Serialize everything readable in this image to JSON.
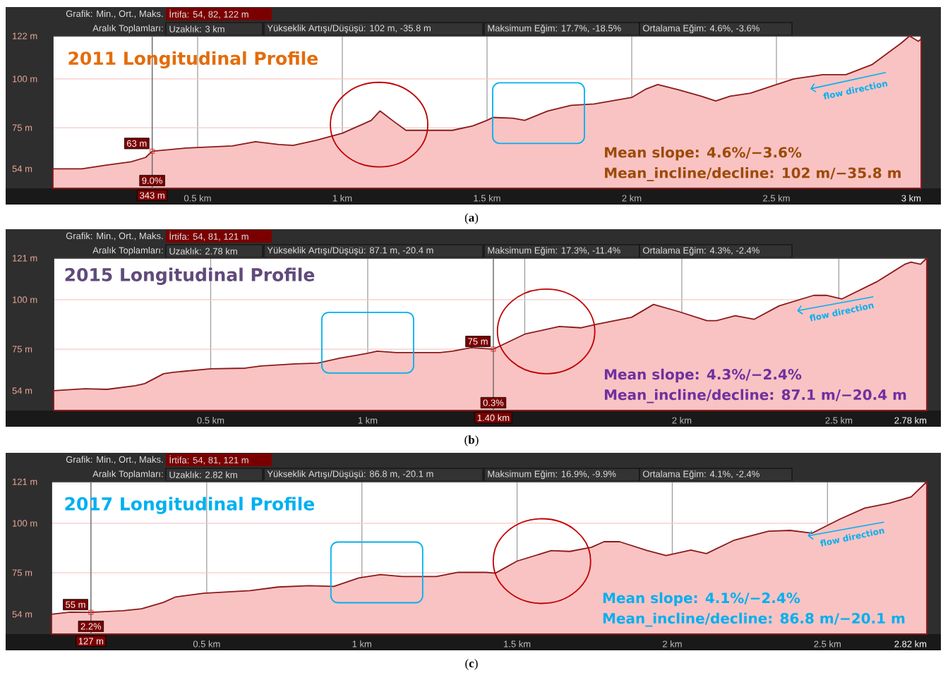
{
  "chart_data": [
    {
      "type": "area",
      "title": "2011 Longitudinal Profile",
      "color": "#f9c3c3",
      "grid": true,
      "xlim": [
        0,
        3
      ],
      "ylim": [
        44,
        122
      ],
      "xticks": [
        {
          "value": 0.5,
          "label": "0.5 km"
        },
        {
          "value": 1,
          "label": "1 km"
        },
        {
          "value": 1.5,
          "label": "1.5 km"
        },
        {
          "value": 2,
          "label": "2 km"
        },
        {
          "value": 2.5,
          "label": "2.5 km"
        },
        {
          "value": 3,
          "label": "3 km"
        }
      ],
      "yticks": [
        {
          "value": 54,
          "label": "54 m"
        },
        {
          "value": 75,
          "label": "75 m"
        },
        {
          "value": 100,
          "label": "100 m"
        },
        {
          "value": 122,
          "label": "122 m"
        }
      ],
      "x": [
        0,
        0.1,
        0.18,
        0.27,
        0.32,
        0.343,
        0.46,
        0.62,
        0.7,
        0.78,
        0.83,
        0.91,
        1.0,
        1.1,
        1.13,
        1.18,
        1.22,
        1.38,
        1.45,
        1.5,
        1.52,
        1.59,
        1.63,
        1.71,
        1.79,
        1.87,
        2.0,
        2.05,
        2.09,
        2.16,
        2.24,
        2.29,
        2.34,
        2.41,
        2.5,
        2.56,
        2.66,
        2.74,
        2.83,
        2.93,
        2.96,
        2.99,
        3.0
      ],
      "values": [
        54,
        54,
        55.8,
        57.6,
        59.8,
        63,
        64.6,
        65.7,
        67.9,
        66.4,
        66,
        68.6,
        72.2,
        78.8,
        83.6,
        78,
        73.7,
        73.7,
        75.9,
        78.8,
        80.3,
        79.9,
        78.8,
        83.6,
        86.5,
        87.2,
        90.5,
        94.9,
        97.1,
        94.5,
        91.2,
        88.7,
        91.2,
        92.7,
        97.1,
        100,
        102.2,
        102.2,
        107.3,
        118.2,
        122,
        119.3,
        120.4
      ],
      "ref_lines": [
        {
          "axis": "x",
          "value": 0.343,
          "label": "343 m"
        }
      ],
      "annotations": [
        "Grafik: Min., Ort., Maks.",
        "İrtifa: 54, 82, 122 m",
        "Aralık Toplamları:",
        "Uzaklık: 3 km",
        "Yükseklik Artışı/Düşüşü: 102 m, -35.8 m",
        "Maksimum Eğim: 17.7%, -18.5%",
        "Ortalama Eğim: 4.6%, -3.6%",
        "Mean slope: 4.6%/−3.6%",
        "Mean_incline/decline: 102 m/−35.8 m",
        "flow direction",
        {
          "text": "63 m",
          "x": 0.343,
          "y": 63
        },
        "9.0%",
        "(**a**)"
      ]
    },
    {
      "type": "area",
      "title": "2015 Longitudinal Profile",
      "color": "#f9c3c3",
      "grid": true,
      "xlim": [
        0,
        2.78
      ],
      "ylim": [
        44,
        121
      ],
      "xticks": [
        {
          "value": 0.5,
          "label": "0.5 km"
        },
        {
          "value": 1,
          "label": "1 km"
        },
        {
          "value": 1.5,
          "label": null
        },
        {
          "value": 2,
          "label": "2 km"
        },
        {
          "value": 2.5,
          "label": "2.5 km"
        },
        {
          "value": 2.78,
          "label": "2.78 km"
        }
      ],
      "yticks": [
        {
          "value": 54,
          "label": "54 m"
        },
        {
          "value": 75,
          "label": "75 m"
        },
        {
          "value": 100,
          "label": "100 m"
        },
        {
          "value": 121,
          "label": "121 m"
        }
      ],
      "x": [
        0,
        0.1,
        0.17,
        0.26,
        0.29,
        0.35,
        0.38,
        0.5,
        0.61,
        0.66,
        0.77,
        0.84,
        0.91,
        1.0,
        1.03,
        1.09,
        1.23,
        1.27,
        1.33,
        1.4,
        1.5,
        1.61,
        1.68,
        1.73,
        1.84,
        1.91,
        1.99,
        2.08,
        2.11,
        2.17,
        2.23,
        2.31,
        2.42,
        2.46,
        2.51,
        2.62,
        2.71,
        2.73,
        2.76,
        2.78
      ],
      "values": [
        54,
        55,
        54.7,
        56.5,
        57.6,
        62.6,
        63.3,
        65.1,
        65.4,
        66.5,
        67.6,
        67.9,
        70.4,
        72.9,
        74,
        73.3,
        73.3,
        74,
        75.8,
        75,
        82.6,
        86.5,
        85.8,
        87.6,
        91.1,
        97.6,
        94,
        89.4,
        89.4,
        91.9,
        90.1,
        96.9,
        102.2,
        102.2,
        100.4,
        109,
        117.9,
        119,
        117.9,
        121
      ],
      "ref_lines": [
        {
          "axis": "x",
          "value": 1.4,
          "label": "1.40 km"
        }
      ],
      "annotations": [
        "Grafik: Min., Ort., Maks.",
        "İrtifa: 54, 81, 121 m",
        "Aralık Toplamları:",
        "Uzaklık: 2.78 km",
        "Yükseklik Artışı/Düşüşü: 87.1 m, -20.4 m",
        "Maksimum Eğim: 17.3%, -11.4%",
        "Ortalama Eğim: 4.3%, -2.4%",
        "Mean slope: 4.3%/−2.4%",
        "Mean_incline/decline: 87.1 m/−20.4 m",
        "flow direction",
        {
          "text": "75 m",
          "x": 1.4,
          "y": 75
        },
        "0.3%",
        "(**b**)"
      ]
    },
    {
      "type": "area",
      "title": "2017 Longitudinal Profile",
      "color": "#f9c3c3",
      "grid": true,
      "xlim": [
        0,
        2.82
      ],
      "ylim": [
        44,
        121
      ],
      "xticks": [
        {
          "value": 0.5,
          "label": "0.5 km"
        },
        {
          "value": 1,
          "label": "1 km"
        },
        {
          "value": 1.5,
          "label": "1.5 km"
        },
        {
          "value": 2,
          "label": "2 km"
        },
        {
          "value": 2.5,
          "label": "2.5 km"
        },
        {
          "value": 2.82,
          "label": "2.82 km"
        }
      ],
      "yticks": [
        {
          "value": 54,
          "label": "54 m"
        },
        {
          "value": 75,
          "label": "75 m"
        },
        {
          "value": 100,
          "label": "100 m"
        },
        {
          "value": 121,
          "label": "121 m"
        }
      ],
      "x": [
        0,
        0.06,
        0.127,
        0.23,
        0.29,
        0.36,
        0.4,
        0.49,
        0.64,
        0.73,
        0.83,
        0.91,
        0.99,
        1.06,
        1.13,
        1.24,
        1.31,
        1.4,
        1.43,
        1.5,
        1.61,
        1.67,
        1.74,
        1.78,
        1.83,
        1.92,
        1.98,
        2.06,
        2.11,
        2.2,
        2.31,
        2.38,
        2.45,
        2.54,
        2.62,
        2.7,
        2.77,
        2.82
      ],
      "values": [
        54,
        55.1,
        55,
        55.8,
        56.8,
        60,
        62.8,
        64.6,
        66,
        67.8,
        68.5,
        68.1,
        72.4,
        74.1,
        73.1,
        73.1,
        75.2,
        75.2,
        74.8,
        80.9,
        86.2,
        85.8,
        87.9,
        90.7,
        90.7,
        86.2,
        83.7,
        86.5,
        84.7,
        91.5,
        96,
        96.4,
        95,
        102.1,
        107.7,
        110.2,
        113.4,
        121
      ],
      "ref_lines": [
        {
          "axis": "x",
          "value": 0.127,
          "label": "127 m"
        }
      ],
      "annotations": [
        "Grafik: Min., Ort., Maks.",
        "İrtifa: 54, 81, 121 m",
        "Aralık Toplamları:",
        "Uzaklık: 2.82 km",
        "Yükseklik Artışı/Düşüşü: 86.8 m, -20.1 m",
        "Maksimum Eğim: 16.9%, -9.9%",
        "Ortalama Eğim: 4.1%, -2.4%",
        "Mean slope: 4.1%/−2.4%",
        "Mean_incline/decline: 86.8 m/−20.1 m",
        "flow direction",
        {
          "text": "55 m",
          "x": 0.127,
          "y": 55
        },
        "2.2%",
        "(**c**)"
      ]
    }
  ]
}
